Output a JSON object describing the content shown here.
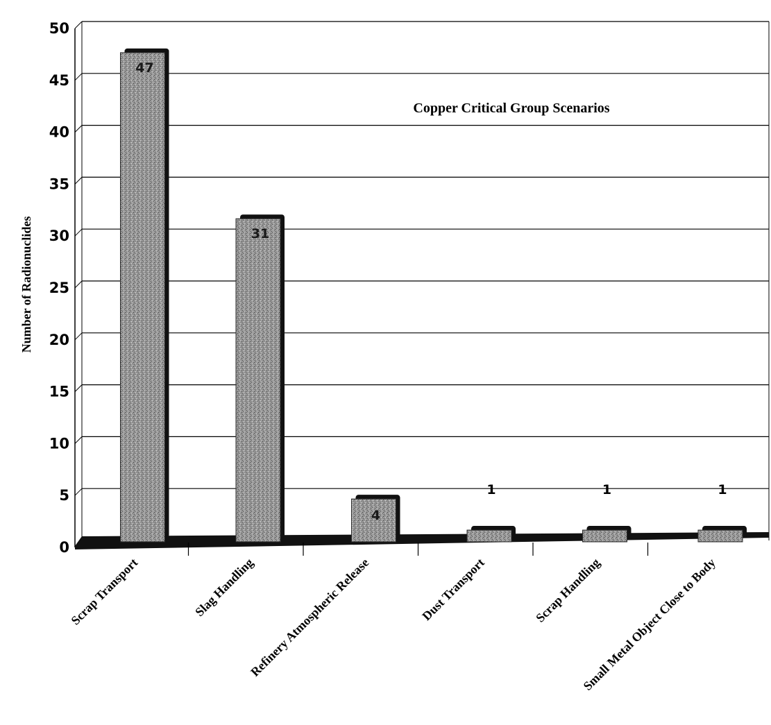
{
  "chart_data": {
    "type": "bar",
    "title": "Copper Critical Group Scenarios",
    "xlabel": "",
    "ylabel": "Number of Radionuclides",
    "ylim": [
      0,
      50
    ],
    "yticks": [
      0,
      5,
      10,
      15,
      20,
      25,
      30,
      35,
      40,
      45,
      50
    ],
    "grid": true,
    "categories": [
      "Scrap Transport",
      "Slag Handling",
      "Refinery Atmospheric Release",
      "Dust Transport",
      "Scrap Handling",
      "Small Metal Object Close to Body"
    ],
    "values": [
      47,
      31,
      4,
      1,
      1,
      1
    ],
    "data_labels": [
      "47",
      "31",
      "4",
      "1",
      "1",
      "1"
    ]
  },
  "colors": {
    "bar_fill": "#8f8f8f",
    "bar_shadow": "#111111",
    "grid": "#000000"
  }
}
